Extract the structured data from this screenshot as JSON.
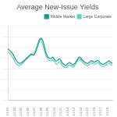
{
  "chart_data": {
    "type": "line",
    "title": "Average New-Issue Yields",
    "categories": [
      "1/1/03",
      null,
      null,
      null,
      "1/1/04",
      null,
      null,
      null,
      "1/1/05",
      null,
      null,
      null,
      "1/1/06",
      null,
      null,
      null,
      "1/1/07",
      null,
      null,
      null,
      "1/1/08",
      null,
      null,
      null,
      "1/1/09",
      null,
      null,
      null,
      "1/1/10",
      null,
      null,
      null,
      "1/1/11",
      null,
      null,
      null,
      "1/1/12",
      null,
      null,
      null,
      "1/1/13",
      null,
      null,
      null,
      "1/1/14",
      null,
      null,
      null,
      "1/1/15",
      null,
      null,
      null,
      "1/1/16",
      null,
      null,
      null,
      "1/1/17",
      null,
      null,
      null,
      "1/1/18",
      null,
      null,
      null
    ],
    "series": [
      {
        "name": "Middle Market",
        "color": "#17978a",
        "values": [
          9.8,
          9.5,
          9.2,
          8.8,
          8.2,
          7.6,
          7.2,
          7.0,
          7.1,
          7.3,
          7.6,
          7.9,
          8.2,
          8.5,
          8.8,
          8.6,
          8.7,
          9.4,
          10.3,
          11.2,
          11.8,
          11.4,
          10.2,
          9.0,
          8.3,
          8.0,
          7.9,
          8.2,
          7.8,
          7.4,
          7.6,
          7.9,
          7.5,
          7.0,
          6.8,
          6.6,
          6.9,
          7.2,
          7.0,
          6.7,
          6.9,
          7.3,
          7.8,
          8.2,
          8.0,
          7.6,
          7.3,
          7.1,
          7.0,
          7.2,
          7.5,
          7.4,
          7.2,
          7.4,
          7.6,
          7.3,
          7.0,
          6.8,
          6.9,
          7.1,
          7.3,
          7.5,
          7.2,
          7.0
        ]
      },
      {
        "name": "Large Corporate",
        "color": "#5ccfc0",
        "values": [
          9.2,
          9.0,
          8.6,
          8.1,
          7.5,
          7.0,
          6.7,
          6.6,
          6.8,
          7.0,
          7.4,
          7.8,
          8.0,
          8.3,
          8.6,
          8.8,
          9.0,
          9.8,
          10.8,
          11.6,
          11.5,
          10.6,
          9.4,
          8.5,
          7.9,
          7.6,
          7.5,
          7.7,
          7.3,
          6.9,
          7.0,
          7.3,
          7.0,
          6.5,
          6.3,
          6.2,
          6.4,
          6.7,
          6.6,
          6.3,
          6.5,
          7.0,
          7.5,
          7.9,
          7.7,
          7.2,
          6.9,
          6.7,
          6.6,
          6.8,
          7.1,
          7.0,
          6.8,
          7.0,
          7.2,
          6.9,
          6.6,
          6.4,
          6.5,
          6.7,
          6.9,
          7.1,
          6.8,
          6.6
        ]
      }
    ],
    "ylim": [
      0,
      14
    ],
    "yticks": [
      0,
      2,
      4,
      6,
      8,
      10,
      12,
      14
    ],
    "grid": true,
    "legend": "top",
    "tick_labels": "x"
  }
}
